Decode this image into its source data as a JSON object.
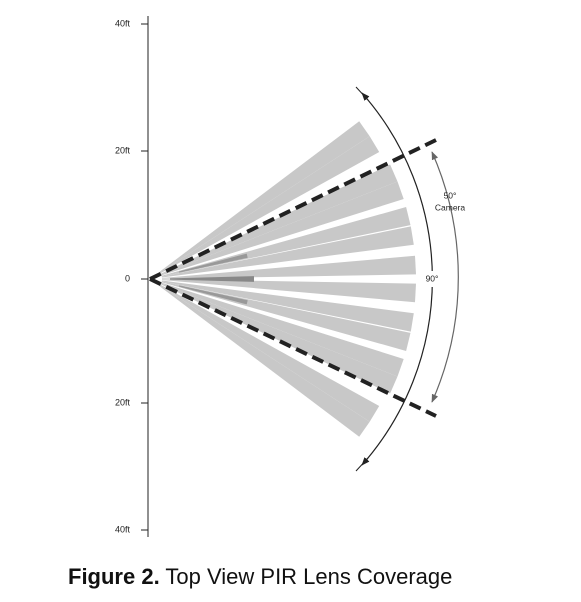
{
  "axis": {
    "labels": [
      "40ft",
      "20ft",
      "0",
      "20ft",
      "40ft"
    ]
  },
  "annotations": {
    "camera_angle": "50°",
    "camera_label": "Camera",
    "pir_angle": "90°"
  },
  "caption": {
    "label": "Figure 2.",
    "text": "Top View PIR Lens Coverage"
  }
}
